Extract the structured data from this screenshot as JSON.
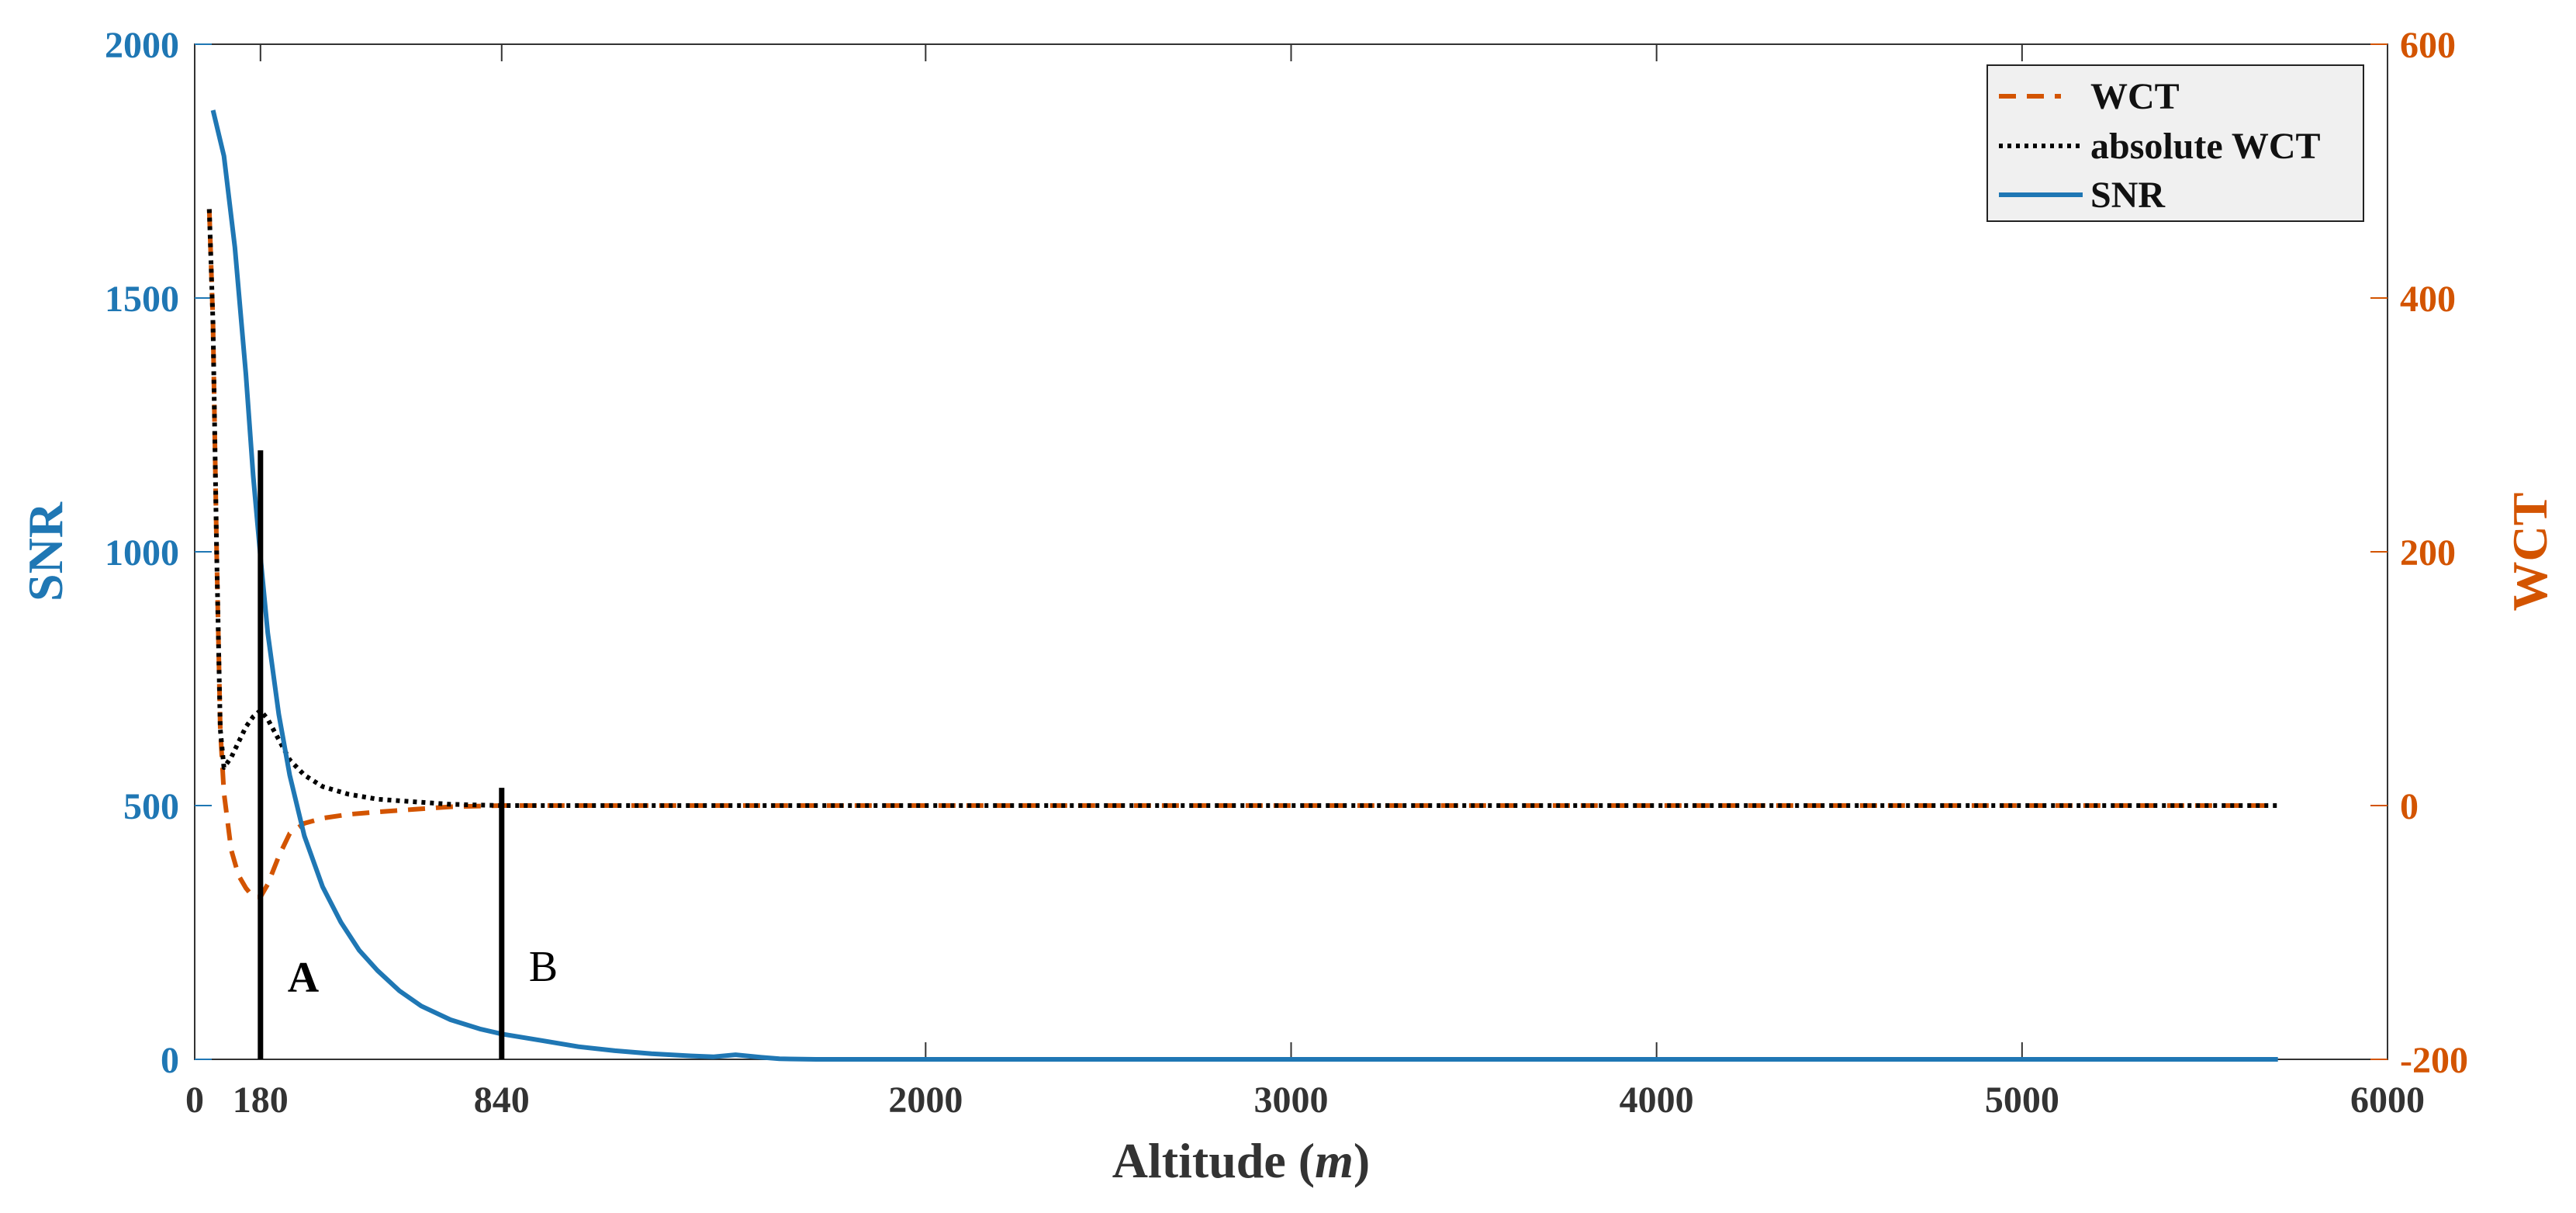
{
  "chart_data": {
    "type": "line",
    "xlabel_main": "Altitude (",
    "xlabel_unit": "m",
    "xlabel_end": ")",
    "ylabel_left": "SNR",
    "ylabel_right": "WCT",
    "xlim": [
      0,
      6000
    ],
    "ylim_left": [
      0,
      2000
    ],
    "ylim_right": [
      -200,
      600
    ],
    "x_ticks": [
      0,
      180,
      840,
      2000,
      3000,
      4000,
      5000,
      6000
    ],
    "x_tick_labels": [
      "0",
      "180",
      "840",
      "2000",
      "3000",
      "4000",
      "5000",
      "6000"
    ],
    "y_left_ticks": [
      0,
      500,
      1000,
      1500,
      2000
    ],
    "y_left_tick_labels": [
      "0",
      "500",
      "1000",
      "1500",
      "2000"
    ],
    "y_right_ticks": [
      -200,
      0,
      200,
      400,
      600
    ],
    "y_right_tick_labels": [
      "-200",
      "0",
      "200",
      "400",
      "600"
    ],
    "grid": false,
    "legend_position": "top-right",
    "colors": {
      "snr": "#1f77b4",
      "wct": "#d35400",
      "abs_wct": "#000000",
      "axis": "#333333"
    },
    "series": [
      {
        "name": "WCT",
        "axis": "right",
        "style": "dashed",
        "x": [
          40,
          50,
          60,
          70,
          80,
          100,
          120,
          140,
          160,
          180,
          200,
          230,
          260,
          300,
          350,
          420,
          500,
          600,
          700,
          840,
          1000,
          1500,
          2000,
          3000,
          4000,
          5000,
          5700
        ],
        "y": [
          470,
          380,
          200,
          60,
          10,
          -35,
          -55,
          -65,
          -72,
          -72,
          -62,
          -40,
          -22,
          -14,
          -10,
          -7,
          -5,
          -3,
          -1,
          0,
          0,
          0,
          0,
          0,
          0,
          0,
          0
        ]
      },
      {
        "name": "absolute WCT",
        "axis": "right",
        "style": "dotted",
        "x": [
          40,
          50,
          60,
          70,
          80,
          100,
          120,
          140,
          160,
          180,
          200,
          230,
          260,
          300,
          350,
          420,
          500,
          600,
          700,
          840,
          1000,
          1500,
          2000,
          3000,
          4000,
          5000,
          5700
        ],
        "y": [
          470,
          380,
          200,
          60,
          30,
          38,
          50,
          62,
          70,
          75,
          68,
          52,
          36,
          24,
          15,
          9,
          5,
          3,
          1,
          0,
          0,
          0,
          0,
          0,
          0,
          0,
          0
        ]
      },
      {
        "name": "SNR",
        "axis": "left",
        "style": "solid",
        "x": [
          50,
          80,
          110,
          140,
          160,
          180,
          200,
          230,
          260,
          300,
          350,
          400,
          450,
          500,
          560,
          620,
          700,
          780,
          840,
          950,
          1050,
          1150,
          1250,
          1350,
          1420,
          1480,
          1550,
          1600,
          1700,
          2000,
          3000,
          4000,
          5000,
          5700
        ],
        "y": [
          1870,
          1780,
          1600,
          1350,
          1150,
          990,
          840,
          680,
          560,
          440,
          340,
          270,
          215,
          175,
          135,
          105,
          78,
          60,
          50,
          37,
          25,
          17,
          11,
          7,
          5,
          9,
          4,
          1,
          0,
          0,
          0,
          0,
          0,
          0
        ]
      }
    ],
    "markers": [
      {
        "label": "A",
        "x": 180,
        "y_top": 1200
      },
      {
        "label": "B",
        "x": 840,
        "y_top": 535
      }
    ]
  }
}
